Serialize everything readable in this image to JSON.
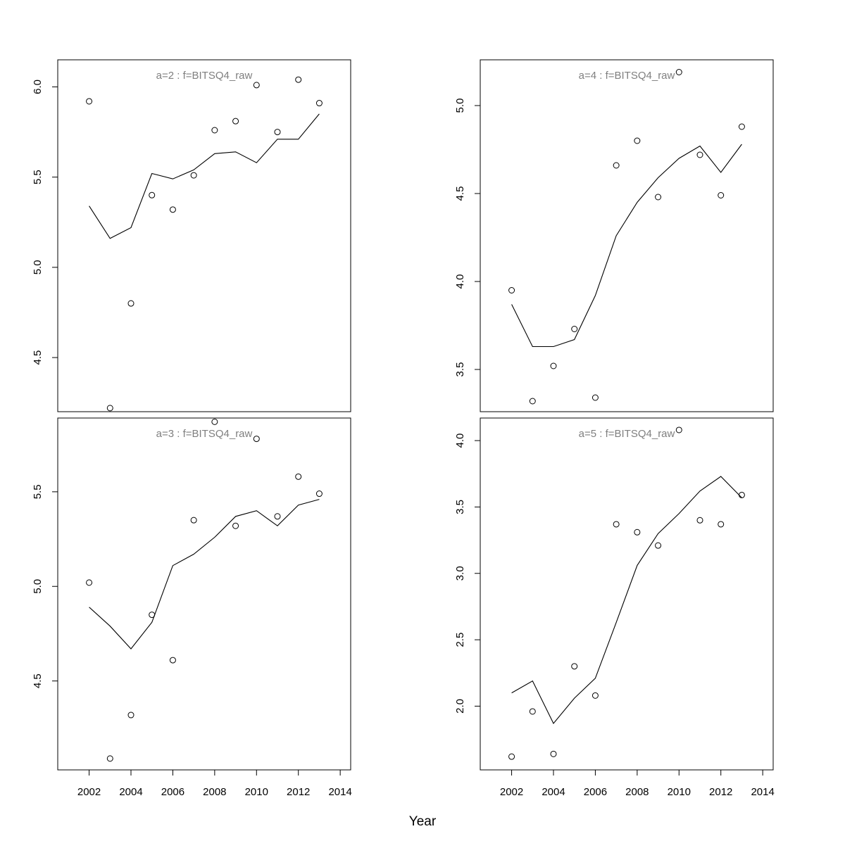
{
  "shared": {
    "xlabel": "Year",
    "x": [
      2002,
      2003,
      2004,
      2005,
      2006,
      2007,
      2008,
      2009,
      2010,
      2011,
      2012,
      2013
    ],
    "xlim": [
      2000.5,
      2014.5
    ],
    "xticks": [
      2002,
      2004,
      2006,
      2008,
      2010,
      2012,
      2014
    ]
  },
  "chart_data": [
    {
      "type": "scatter",
      "panel_title": "a=2  :  f=BITSQ4_raw",
      "ylim": [
        4.2,
        6.15
      ],
      "yticks": [
        4.5,
        5.0,
        5.5,
        6.0
      ],
      "ytick_labels": [
        "4.5",
        "5.0",
        "5.5",
        "6.0"
      ],
      "series": [
        {
          "kind": "points",
          "values": [
            5.92,
            4.22,
            4.8,
            5.4,
            5.32,
            5.51,
            5.76,
            5.81,
            6.01,
            5.75,
            6.04,
            5.91
          ]
        },
        {
          "kind": "line",
          "values": [
            5.34,
            5.16,
            5.22,
            5.52,
            5.49,
            5.54,
            5.63,
            5.64,
            5.58,
            5.71,
            5.71,
            5.85
          ]
        }
      ]
    },
    {
      "type": "scatter",
      "panel_title": "a=4  :  f=BITSQ4_raw",
      "ylim": [
        3.26,
        5.26
      ],
      "yticks": [
        3.5,
        4.0,
        4.5,
        5.0
      ],
      "ytick_labels": [
        "3.5",
        "4.0",
        "4.5",
        "5.0"
      ],
      "series": [
        {
          "kind": "points",
          "values": [
            3.95,
            3.32,
            3.52,
            3.73,
            3.34,
            4.66,
            4.8,
            4.48,
            5.19,
            4.72,
            4.49,
            4.88
          ]
        },
        {
          "kind": "line",
          "values": [
            3.87,
            3.63,
            3.63,
            3.67,
            3.92,
            4.26,
            4.45,
            4.59,
            4.7,
            4.77,
            4.62,
            4.78
          ]
        }
      ]
    },
    {
      "type": "scatter",
      "panel_title": "a=3  :  f=BITSQ4_raw",
      "ylim": [
        4.03,
        5.89
      ],
      "yticks": [
        4.5,
        5.0,
        5.5
      ],
      "ytick_labels": [
        "4.5",
        "5.0",
        "5.5"
      ],
      "series": [
        {
          "kind": "points",
          "values": [
            5.02,
            4.09,
            4.32,
            4.85,
            4.61,
            5.35,
            5.87,
            5.32,
            5.78,
            5.37,
            5.58,
            5.49
          ]
        },
        {
          "kind": "line",
          "values": [
            4.89,
            4.79,
            4.67,
            4.81,
            5.11,
            5.17,
            5.26,
            5.37,
            5.4,
            5.32,
            5.43,
            5.46
          ]
        }
      ]
    },
    {
      "type": "scatter",
      "panel_title": "a=5  :  f=BITSQ4_raw",
      "ylim": [
        1.52,
        4.17
      ],
      "yticks": [
        2.0,
        2.5,
        3.0,
        3.5,
        4.0
      ],
      "ytick_labels": [
        "2.0",
        "2.5",
        "3.0",
        "3.5",
        "4.0"
      ],
      "series": [
        {
          "kind": "points",
          "values": [
            1.62,
            1.96,
            1.64,
            2.3,
            2.08,
            3.37,
            3.31,
            3.21,
            4.08,
            3.4,
            3.37,
            3.59
          ]
        },
        {
          "kind": "line",
          "values": [
            2.1,
            2.19,
            1.87,
            2.06,
            2.21,
            2.63,
            3.06,
            3.3,
            3.45,
            3.62,
            3.73,
            3.57
          ]
        }
      ]
    }
  ]
}
